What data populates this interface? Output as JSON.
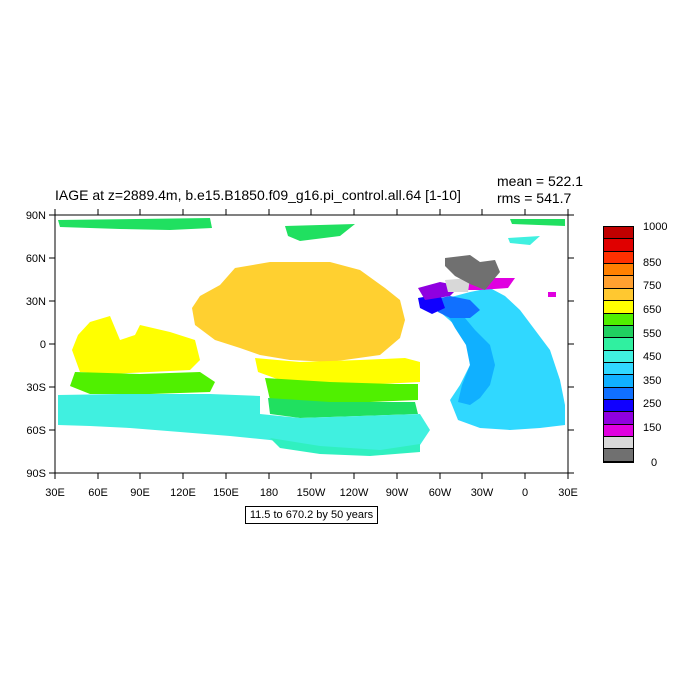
{
  "title": "IAGE at z=2889.4m, b.e15.B1850.f09_g16.pi_control.all.64 [1-10]",
  "stats": {
    "mean": "mean = 522.1",
    "rms": "rms = 541.7"
  },
  "range_label": "11.5 to 670.2 by 50 years",
  "axes": {
    "lat_ticks": [
      "90N",
      "60N",
      "30N",
      "0",
      "30S",
      "60S",
      "90S"
    ],
    "lon_ticks": [
      "30E",
      "60E",
      "90E",
      "120E",
      "150E",
      "180",
      "150W",
      "120W",
      "90W",
      "60W",
      "30W",
      "0",
      "30E"
    ]
  },
  "colorbar": {
    "labels": [
      "1000",
      "850",
      "750",
      "650",
      "550",
      "450",
      "350",
      "250",
      "150",
      "0"
    ],
    "colors": [
      "#c00000",
      "#e00000",
      "#ff3000",
      "#ff8000",
      "#ffa030",
      "#ffc830",
      "#ffff00",
      "#50f000",
      "#20d060",
      "#30f0a0",
      "#40f0e0",
      "#30d8ff",
      "#10b0ff",
      "#1070ff",
      "#1000ff",
      "#9000e0",
      "#e000e0",
      "#d8d8d8",
      "#707070"
    ]
  },
  "colors": {
    "yellow": "#ffff00",
    "gold": "#ffd030",
    "lgreen": "#50f000",
    "green": "#20e060",
    "teal": "#30f0c0",
    "cyan": "#40f0e0",
    "sky": "#30d8ff",
    "blue": "#10b0ff",
    "dblue": "#1070ff",
    "navy": "#1000ff",
    "purple": "#9000e0",
    "magenta": "#e000e0",
    "lgray": "#d8d8d8",
    "gray": "#707070"
  }
}
